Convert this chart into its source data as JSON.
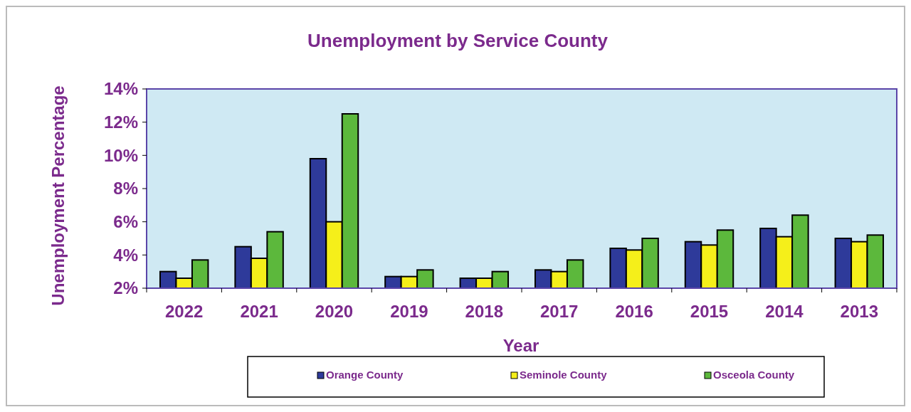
{
  "chart_data": {
    "type": "bar",
    "title": "Unemployment by Service County",
    "xlabel": "Year",
    "ylabel": "Unemployment Percentage",
    "categories": [
      "2022",
      "2021",
      "2020",
      "2019",
      "2018",
      "2017",
      "2016",
      "2015",
      "2014",
      "2013"
    ],
    "series": [
      {
        "name": "Orange County",
        "color": "#2e3a9a",
        "values": [
          3.0,
          4.5,
          9.8,
          2.7,
          2.6,
          3.1,
          4.4,
          4.8,
          5.6,
          5.0
        ]
      },
      {
        "name": "Seminole County",
        "color": "#f5ef1a",
        "values": [
          2.6,
          3.8,
          6.0,
          2.7,
          2.6,
          3.0,
          4.3,
          4.6,
          5.1,
          4.8
        ]
      },
      {
        "name": "Osceola County",
        "color": "#5cb83c",
        "values": [
          3.7,
          5.4,
          12.5,
          3.1,
          3.0,
          3.7,
          5.0,
          5.5,
          6.4,
          5.2
        ]
      }
    ],
    "ylim": [
      2,
      14
    ],
    "yticks": [
      {
        "value": 2,
        "label": "2%"
      },
      {
        "value": 4,
        "label": "4%"
      },
      {
        "value": 6,
        "label": "6%"
      },
      {
        "value": 8,
        "label": "8%"
      },
      {
        "value": 10,
        "label": "10%"
      },
      {
        "value": 12,
        "label": "12%"
      },
      {
        "value": 14,
        "label": "14%"
      }
    ],
    "legend": "bottom",
    "grid": false
  }
}
